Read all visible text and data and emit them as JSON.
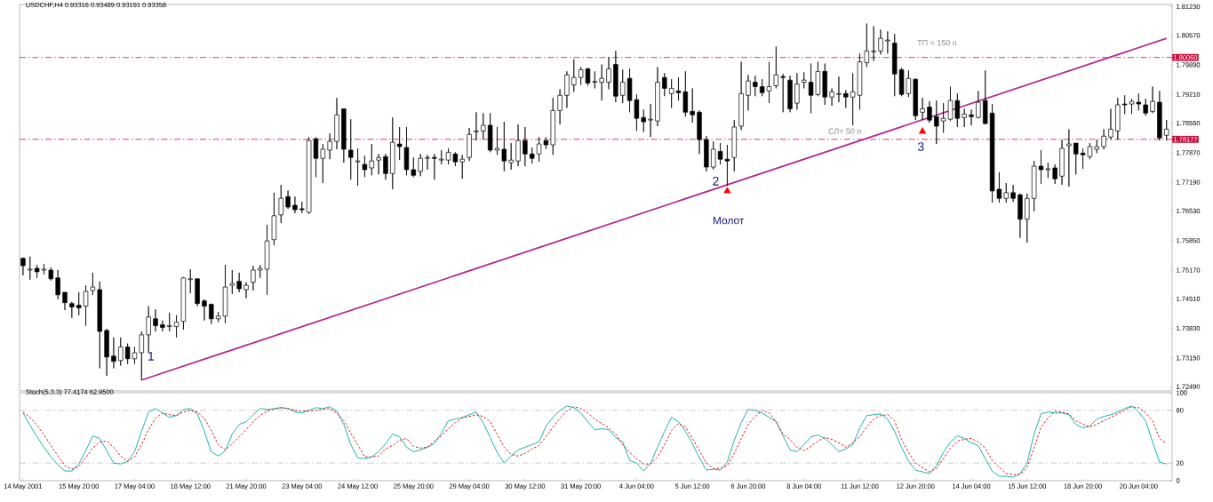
{
  "chart_data": [
    {
      "type": "candlestick",
      "title": "USDCHF,H4  0.93316 0.93489 0.93191 0.93358",
      "categories": [
        null,
        null,
        null,
        null,
        null,
        null,
        null,
        null,
        null,
        null,
        null,
        null,
        null,
        null,
        null,
        null,
        null,
        null,
        null,
        null,
        null,
        null,
        null,
        null,
        null,
        null,
        null,
        null,
        null,
        null,
        null,
        null,
        null,
        null,
        null,
        null,
        null,
        null,
        null,
        null,
        null,
        null,
        null,
        null,
        null,
        null,
        null,
        null,
        null,
        null,
        null,
        null,
        null,
        null,
        null,
        null,
        null,
        null,
        null,
        null,
        null,
        null,
        null,
        null,
        null,
        null,
        null,
        null,
        null,
        null,
        null,
        null,
        null,
        null,
        null,
        null,
        null,
        null,
        null,
        null,
        null,
        null,
        null,
        null,
        null,
        null,
        null,
        null,
        null,
        null,
        null,
        null,
        null,
        null,
        null,
        null,
        null,
        null,
        null,
        null,
        null,
        null,
        null,
        null,
        null,
        null,
        null,
        null,
        null,
        null,
        null,
        null,
        null,
        null,
        null,
        null,
        null,
        null,
        null,
        null,
        null,
        null,
        null,
        null,
        null,
        null,
        null,
        null,
        null,
        null,
        null,
        null,
        null,
        null,
        null,
        null,
        null,
        null,
        null,
        null,
        null,
        null,
        null,
        null,
        null,
        null,
        null,
        null,
        null,
        null,
        null,
        null,
        null,
        null,
        null,
        null,
        null,
        null,
        null,
        null,
        null,
        null,
        null,
        null,
        null
      ],
      "ohlc": [
        [
          1.7544,
          1.7546,
          1.7505,
          1.7527
        ],
        [
          1.7517,
          1.7548,
          1.7495,
          1.7519
        ],
        [
          1.7521,
          1.7529,
          1.7499,
          1.7513
        ],
        [
          1.7517,
          1.7531,
          1.7507,
          1.7519
        ],
        [
          1.7517,
          1.7523,
          1.7493,
          1.7497
        ],
        [
          1.7499,
          1.7517,
          1.745,
          1.746
        ],
        [
          1.7466,
          1.7466,
          1.7425,
          1.7442
        ],
        [
          1.744,
          1.7444,
          1.7407,
          1.7432
        ],
        [
          1.7436,
          1.7466,
          1.7413,
          1.743
        ],
        [
          1.7434,
          1.7482,
          1.7389,
          1.7468
        ],
        [
          1.747,
          1.7511,
          1.746,
          1.7478
        ],
        [
          1.7472,
          1.7491,
          1.7291,
          1.7376
        ],
        [
          1.7378,
          1.7382,
          1.7274,
          1.7317
        ],
        [
          1.7319,
          1.7362,
          1.7291,
          1.7307
        ],
        [
          1.7309,
          1.7362,
          1.7297,
          1.734
        ],
        [
          1.734,
          1.7348,
          1.7301,
          1.7313
        ],
        [
          1.7313,
          1.734,
          1.7301,
          1.7327
        ],
        [
          1.7327,
          1.7376,
          1.7264,
          1.7368
        ],
        [
          1.7368,
          1.7434,
          1.7327,
          1.7409
        ],
        [
          1.7405,
          1.7427,
          1.7376,
          1.7389
        ],
        [
          1.7391,
          1.7401,
          1.7376,
          1.7385
        ],
        [
          1.7387,
          1.7419,
          1.7376,
          1.7389
        ],
        [
          1.7387,
          1.7413,
          1.7362,
          1.7397
        ],
        [
          1.7399,
          1.7501,
          1.738,
          1.7499
        ],
        [
          1.7495,
          1.7519,
          1.7464,
          1.7497
        ],
        [
          1.7497,
          1.7497,
          1.7434,
          1.744
        ],
        [
          1.7446,
          1.745,
          1.7401,
          1.7434
        ],
        [
          1.7438,
          1.744,
          1.7393,
          1.7405
        ],
        [
          1.7405,
          1.7421,
          1.7397,
          1.7411
        ],
        [
          1.7411,
          1.7529,
          1.7395,
          1.7478
        ],
        [
          1.7482,
          1.7517,
          1.7462,
          1.7486
        ],
        [
          1.7491,
          1.7511,
          1.7466,
          1.7474
        ],
        [
          1.7472,
          1.7489,
          1.7452,
          1.7482
        ],
        [
          1.7489,
          1.7527,
          1.747,
          1.7517
        ],
        [
          1.7517,
          1.7529,
          1.7499,
          1.7521
        ],
        [
          1.7519,
          1.7621,
          1.746,
          1.7584
        ],
        [
          1.7587,
          1.7695,
          1.7574,
          1.7642
        ],
        [
          1.7644,
          1.7713,
          1.7625,
          1.7682
        ],
        [
          1.7686,
          1.77,
          1.7658,
          1.7662
        ],
        [
          1.7666,
          1.7686,
          1.7648,
          1.7656
        ],
        [
          1.7658,
          1.7674,
          1.7648,
          1.7656
        ],
        [
          1.765,
          1.7823,
          1.7646,
          1.7815
        ],
        [
          1.7819,
          1.7823,
          1.7731,
          1.7774
        ],
        [
          1.7774,
          1.7807,
          1.7717,
          1.7795
        ],
        [
          1.7793,
          1.7831,
          1.7772,
          1.7813
        ],
        [
          1.7813,
          1.7913,
          1.7795,
          1.7874
        ],
        [
          1.7888,
          1.7888,
          1.7764,
          1.7795
        ],
        [
          1.7793,
          1.7864,
          1.7725,
          1.7776
        ],
        [
          1.7766,
          1.7797,
          1.7711,
          1.7768
        ],
        [
          1.776,
          1.778,
          1.7731,
          1.7748
        ],
        [
          1.7752,
          1.7807,
          1.7735,
          1.7768
        ],
        [
          1.777,
          1.7784,
          1.7737,
          1.7776
        ],
        [
          1.7778,
          1.7784,
          1.7725,
          1.7739
        ],
        [
          1.7739,
          1.7868,
          1.7703,
          1.7811
        ],
        [
          1.7807,
          1.7846,
          1.777,
          1.7801
        ],
        [
          1.7799,
          1.7846,
          1.7735,
          1.7748
        ],
        [
          1.7748,
          1.7776,
          1.7731,
          1.7735
        ],
        [
          1.7744,
          1.7784,
          1.7733,
          1.7774
        ],
        [
          1.7774,
          1.7782,
          1.7748,
          1.7776
        ],
        [
          1.7776,
          1.7784,
          1.7725,
          1.7774
        ],
        [
          1.777,
          1.7793,
          1.776,
          1.7772
        ],
        [
          1.777,
          1.7797,
          1.776,
          1.7788
        ],
        [
          1.7784,
          1.7788,
          1.7756,
          1.7766
        ],
        [
          1.7766,
          1.7782,
          1.7727,
          1.7772
        ],
        [
          1.7776,
          1.7844,
          1.7768,
          1.7829
        ],
        [
          1.7835,
          1.788,
          1.7815,
          1.7837
        ],
        [
          1.7837,
          1.7878,
          1.7817,
          1.785
        ],
        [
          1.785,
          1.7878,
          1.7788,
          1.7793
        ],
        [
          1.7793,
          1.7846,
          1.7782,
          1.7797
        ],
        [
          1.7795,
          1.7858,
          1.7744,
          1.7768
        ],
        [
          1.7764,
          1.7809,
          1.7748,
          1.777
        ],
        [
          1.7768,
          1.7852,
          1.7756,
          1.7815
        ],
        [
          1.7815,
          1.7846,
          1.7756,
          1.7784
        ],
        [
          1.7784,
          1.7799,
          1.7762,
          1.7774
        ],
        [
          1.7784,
          1.7823,
          1.7766,
          1.7807
        ],
        [
          1.7815,
          1.7823,
          1.7795,
          1.7805
        ],
        [
          1.7805,
          1.7913,
          1.7782,
          1.7884
        ],
        [
          1.7884,
          1.7933,
          1.7852,
          1.7919
        ],
        [
          1.7919,
          1.7974,
          1.789,
          1.7966
        ],
        [
          1.7943,
          1.8002,
          1.7927,
          1.796
        ],
        [
          1.796,
          1.7984,
          1.7943,
          1.7978
        ],
        [
          1.798,
          1.7982,
          1.7941,
          1.7947
        ],
        [
          1.7949,
          1.7974,
          1.7935,
          1.7951
        ],
        [
          1.7949,
          1.799,
          1.7907,
          1.7958
        ],
        [
          1.7949,
          1.8007,
          1.7933,
          1.798
        ],
        [
          1.799,
          1.8021,
          1.7903,
          1.7917
        ],
        [
          1.7919,
          1.7978,
          1.7901,
          1.7949
        ],
        [
          1.7958,
          1.798,
          1.788,
          1.7907
        ],
        [
          1.7909,
          1.7921,
          1.7837,
          1.7866
        ],
        [
          1.7868,
          1.7886,
          1.7835,
          1.7858
        ],
        [
          1.7862,
          1.7899,
          1.7823,
          1.7864
        ],
        [
          1.786,
          1.7984,
          1.7848,
          1.7949
        ],
        [
          1.796,
          1.797,
          1.7917,
          1.7935
        ],
        [
          1.7923,
          1.7956,
          1.789,
          1.7935
        ],
        [
          1.7929,
          1.796,
          1.7907,
          1.7925
        ],
        [
          1.7927,
          1.7974,
          1.787,
          1.788
        ],
        [
          1.7882,
          1.7935,
          1.7856,
          1.7874
        ],
        [
          1.788,
          1.7884,
          1.7784,
          1.7817
        ],
        [
          1.7817,
          1.7825,
          1.7744,
          1.7754
        ],
        [
          1.7754,
          1.7813,
          1.7748,
          1.7795
        ],
        [
          1.779,
          1.7809,
          1.776,
          1.7772
        ],
        [
          1.7772,
          1.7805,
          1.7711,
          1.7768
        ],
        [
          1.7776,
          1.7862,
          1.7744,
          1.7846
        ],
        [
          1.7848,
          1.7996,
          1.7839,
          1.7923
        ],
        [
          1.7919,
          1.7966,
          1.7884,
          1.7952
        ],
        [
          1.7949,
          1.7964,
          1.7917,
          1.7939
        ],
        [
          1.7939,
          1.7956,
          1.7917,
          1.7925
        ],
        [
          1.7929,
          1.7996,
          1.7901,
          1.7939
        ],
        [
          1.7941,
          1.8031,
          1.7935,
          1.7966
        ],
        [
          1.7962,
          1.7968,
          1.788,
          1.796
        ],
        [
          1.7954,
          1.7964,
          1.788,
          1.7888
        ],
        [
          1.7901,
          1.797,
          1.7886,
          1.7945
        ],
        [
          1.7949,
          1.7972,
          1.7935,
          1.7954
        ],
        [
          1.7949,
          1.7992,
          1.7878,
          1.7919
        ],
        [
          1.7921,
          1.7996,
          1.7917,
          1.7974
        ],
        [
          1.7974,
          1.7992,
          1.7897,
          1.7915
        ],
        [
          1.7915,
          1.7935,
          1.7895,
          1.7927
        ],
        [
          1.7921,
          1.7962,
          1.7903,
          1.7923
        ],
        [
          1.7923,
          1.7931,
          1.789,
          1.7915
        ],
        [
          1.7915,
          1.797,
          1.785,
          1.7927
        ],
        [
          1.7919,
          1.8015,
          1.7886,
          1.7996
        ],
        [
          1.7994,
          1.8084,
          1.7984,
          1.8021
        ],
        [
          1.8019,
          1.8078,
          1.7998,
          1.8021
        ],
        [
          1.8021,
          1.807,
          1.8013,
          1.805
        ],
        [
          1.8044,
          1.8066,
          1.8015,
          1.8046
        ],
        [
          1.8039,
          1.806,
          1.7917,
          1.7968
        ],
        [
          1.7978,
          1.7982,
          1.7917,
          1.7921
        ],
        [
          1.7923,
          1.7976,
          1.7915,
          1.7958
        ],
        [
          1.7956,
          1.7958,
          1.7862,
          1.7872
        ],
        [
          1.788,
          1.7913,
          1.7862,
          1.7888
        ],
        [
          1.7892,
          1.7905,
          1.7856,
          1.7862
        ],
        [
          1.787,
          1.7907,
          1.7807,
          1.7848
        ],
        [
          1.786,
          1.7901,
          1.7833,
          1.7866
        ],
        [
          1.7864,
          1.7939,
          1.786,
          1.7907
        ],
        [
          1.7907,
          1.7923,
          1.7846,
          1.7866
        ],
        [
          1.7868,
          1.7888,
          1.7846,
          1.7876
        ],
        [
          1.7874,
          1.7886,
          1.785,
          1.787
        ],
        [
          1.7868,
          1.7929,
          1.7866,
          1.7903
        ],
        [
          1.7907,
          1.7976,
          1.7852,
          1.7854
        ],
        [
          1.7878,
          1.7899,
          1.7672,
          1.7699
        ],
        [
          1.7703,
          1.7742,
          1.7672,
          1.7682
        ],
        [
          1.7682,
          1.7717,
          1.7672,
          1.7695
        ],
        [
          1.7695,
          1.7713,
          1.7674,
          1.7682
        ],
        [
          1.769,
          1.7693,
          1.7591,
          1.7634
        ],
        [
          1.7634,
          1.7693,
          1.758,
          1.7682
        ],
        [
          1.7682,
          1.7768,
          1.7652,
          1.7756
        ],
        [
          1.7756,
          1.7793,
          1.7715,
          1.7748
        ],
        [
          1.7748,
          1.7764,
          1.7729,
          1.775
        ],
        [
          1.7752,
          1.776,
          1.7715,
          1.7727
        ],
        [
          1.7733,
          1.7817,
          1.7713,
          1.7797
        ],
        [
          1.7803,
          1.7841,
          1.7709,
          1.7807
        ],
        [
          1.7809,
          1.7809,
          1.7737,
          1.7784
        ],
        [
          1.7786,
          1.7797,
          1.775,
          1.7782
        ],
        [
          1.7778,
          1.7809,
          1.7772,
          1.7801
        ],
        [
          1.7795,
          1.7817,
          1.7786,
          1.7801
        ],
        [
          1.7801,
          1.7841,
          1.7795,
          1.7825
        ],
        [
          1.7823,
          1.7888,
          1.7817,
          1.7841
        ],
        [
          1.7837,
          1.7913,
          1.7817,
          1.7897
        ],
        [
          1.7899,
          1.7919,
          1.7876,
          1.7897
        ],
        [
          1.7899,
          1.7911,
          1.7876,
          1.7905
        ],
        [
          1.7903,
          1.7923,
          1.7884,
          1.7899
        ],
        [
          1.7897,
          1.7911,
          1.7872,
          1.7878
        ],
        [
          1.7882,
          1.7939,
          1.7878,
          1.7905
        ],
        [
          1.7903,
          1.7929,
          1.7815,
          1.7821
        ],
        [
          1.7827,
          1.7862,
          1.7815,
          1.7841
        ]
      ],
      "ylim": [
        1.7239,
        1.8128
      ],
      "yticks": [
        {
          "value": 1.8123,
          "label": "1.81230"
        },
        {
          "value": 1.8057,
          "label": "1.80570"
        },
        {
          "value": 1.7989,
          "label": "1.79890"
        },
        {
          "value": 1.7921,
          "label": "1.79210"
        },
        {
          "value": 1.7855,
          "label": "1.78550"
        },
        {
          "value": 1.7787,
          "label": "1.77870"
        },
        {
          "value": 1.7719,
          "label": "1.77190"
        },
        {
          "value": 1.7653,
          "label": "1.76530"
        },
        {
          "value": 1.7585,
          "label": "1.75850"
        },
        {
          "value": 1.7517,
          "label": "1.75170"
        },
        {
          "value": 1.7451,
          "label": "1.74510"
        },
        {
          "value": 1.7383,
          "label": "1.73830"
        },
        {
          "value": 1.7315,
          "label": "1.73150"
        },
        {
          "value": 1.7249,
          "label": "1.72490"
        }
      ],
      "series": [
        {
          "type": "line",
          "color": "#b03090",
          "values": [
            null,
            null,
            null,
            null,
            null,
            null,
            null,
            null,
            null,
            null,
            null,
            null,
            null,
            null,
            null,
            null,
            null,
            1.7264,
            null,
            null,
            null,
            null,
            null,
            null,
            null,
            null,
            null,
            null,
            null,
            null,
            null,
            null,
            null,
            null,
            null,
            null,
            null,
            null,
            null,
            null,
            null,
            null,
            null,
            null,
            null,
            null,
            null,
            null,
            null,
            null,
            null,
            null,
            null,
            null,
            null,
            null,
            null,
            null,
            null,
            null,
            null,
            null,
            null,
            null,
            null,
            null,
            null,
            null,
            null,
            null,
            null,
            null,
            null,
            null,
            null,
            null,
            null,
            null,
            null,
            null,
            null,
            null,
            null,
            null,
            null,
            null,
            null,
            null,
            null,
            null,
            null,
            null,
            null,
            null,
            null,
            null,
            null,
            null,
            null,
            null,
            null,
            null,
            null,
            null,
            null,
            null,
            null,
            null,
            null,
            null,
            null,
            null,
            null,
            null,
            null,
            null,
            null,
            null,
            null,
            null,
            null,
            null,
            null,
            null,
            null,
            null,
            null,
            null,
            null,
            null,
            null,
            null,
            null,
            null,
            null,
            null,
            null,
            null,
            null,
            null,
            null,
            null,
            null,
            null,
            null,
            null,
            null,
            null,
            null,
            null,
            null,
            null,
            null,
            null,
            null,
            null,
            null,
            null,
            null,
            null,
            null,
            null,
            null,
            null,
            1.805
          ]
        },
        {
          "type": "scatter",
          "color": "#ff0000",
          "marker": "triangle",
          "values": [
            null,
            null,
            null,
            null,
            null,
            null,
            null,
            null,
            null,
            null,
            null,
            null,
            null,
            null,
            null,
            null,
            null,
            null,
            null,
            null,
            null,
            null,
            null,
            null,
            null,
            null,
            null,
            null,
            null,
            null,
            null,
            null,
            null,
            null,
            null,
            null,
            null,
            null,
            null,
            null,
            null,
            null,
            null,
            null,
            null,
            null,
            null,
            null,
            null,
            null,
            null,
            null,
            null,
            null,
            null,
            null,
            null,
            null,
            null,
            null,
            null,
            null,
            null,
            null,
            null,
            null,
            null,
            null,
            null,
            null,
            null,
            null,
            null,
            null,
            null,
            null,
            null,
            null,
            null,
            null,
            null,
            null,
            null,
            null,
            null,
            null,
            null,
            null,
            null,
            null,
            null,
            null,
            null,
            null,
            null,
            null,
            null,
            null,
            null,
            null,
            null,
            1.7699,
            null,
            null,
            null,
            null,
            null,
            null,
            null,
            null,
            null,
            null,
            null,
            null,
            null,
            null,
            null,
            null,
            null,
            null,
            null,
            null,
            null,
            null,
            null,
            null,
            null,
            null,
            null,
            1.7836,
            null,
            null,
            null,
            null,
            null,
            null,
            null,
            null,
            null,
            null,
            null,
            null,
            null,
            null,
            null,
            null,
            null,
            null,
            null,
            null,
            null,
            null,
            null,
            null,
            null,
            null,
            null,
            null,
            null,
            null,
            null,
            null,
            null,
            null,
            null
          ]
        }
      ],
      "ref_lines": [
        {
          "axis": "y",
          "value": 1.8006,
          "label": "1.80060",
          "color": "#c8103c",
          "line_style": "dashed"
        },
        {
          "axis": "y",
          "value": 1.78177,
          "label": "1.78177",
          "color": "#c8103c",
          "line_style": "dashed"
        }
      ],
      "annotations": [
        "1",
        "2",
        "3",
        "Молот",
        "ТП = 150 п",
        "СЛ= 50 п"
      ]
    },
    {
      "type": "line",
      "title": "Stoch(5,3,3) 77.4174 62.9500",
      "categories": [
        "14 May 2001",
        null,
        null,
        null,
        null,
        null,
        null,
        null,
        "15 May 20:00",
        null,
        null,
        null,
        null,
        null,
        null,
        null,
        "17 May 04:00",
        null,
        null,
        null,
        null,
        null,
        null,
        null,
        "18 May 12:00",
        null,
        null,
        null,
        null,
        null,
        null,
        null,
        "21 May 20:00",
        null,
        null,
        null,
        null,
        null,
        null,
        null,
        "23 May 04:00",
        null,
        null,
        null,
        null,
        null,
        null,
        null,
        "24 May 12:00",
        null,
        null,
        null,
        null,
        null,
        null,
        null,
        "25 May 20:00",
        null,
        null,
        null,
        null,
        null,
        null,
        null,
        "29 May 04:00",
        null,
        null,
        null,
        null,
        null,
        null,
        null,
        "30 May 12:00",
        null,
        null,
        null,
        null,
        null,
        null,
        null,
        "31 May 20:00",
        null,
        null,
        null,
        null,
        null,
        null,
        null,
        "4 Jun 04:00",
        null,
        null,
        null,
        null,
        null,
        null,
        null,
        "5 Jun 12:00",
        null,
        null,
        null,
        null,
        null,
        null,
        null,
        "6 Jun 20:00",
        null,
        null,
        null,
        null,
        null,
        null,
        null,
        "8 Jun 04:00",
        null,
        null,
        null,
        null,
        null,
        null,
        null,
        "11 Jun 12:00",
        null,
        null,
        null,
        null,
        null,
        null,
        null,
        "12 Jun 20:00",
        null,
        null,
        null,
        null,
        null,
        null,
        null,
        "14 Jun 04:00",
        null,
        null,
        null,
        null,
        null,
        null,
        null,
        "15 Jun 12:00",
        null,
        null,
        null,
        null,
        null,
        null,
        null,
        "18 Jun 20:00",
        null,
        null,
        null,
        null,
        null,
        null,
        null,
        "20 Jun 04:00",
        null,
        null,
        null,
        null
      ],
      "ylim": [
        0,
        100
      ],
      "yticks": [
        0,
        20,
        80,
        100
      ],
      "series": [
        {
          "color": "#20b2aa",
          "values": [
            77,
            63,
            50,
            38,
            27,
            18,
            11,
            11,
            19,
            34,
            51,
            48,
            34,
            20,
            19,
            22,
            33,
            56,
            78,
            82,
            77,
            72,
            74,
            81,
            82,
            76,
            56,
            33,
            28,
            34,
            53,
            64,
            67,
            75,
            82,
            81,
            82,
            83,
            82,
            78,
            77,
            80,
            83,
            82,
            84,
            79,
            64,
            41,
            26,
            25,
            27,
            33,
            42,
            53,
            50,
            38,
            33,
            35,
            38,
            42,
            54,
            68,
            70,
            72,
            75,
            78,
            66,
            49,
            32,
            20,
            28,
            35,
            38,
            41,
            44,
            62,
            72,
            80,
            85,
            83,
            77,
            67,
            58,
            59,
            58,
            49,
            44,
            23,
            20,
            11,
            20,
            38,
            56,
            72,
            67,
            56,
            42,
            26,
            12,
            13,
            12,
            21,
            46,
            66,
            81,
            80,
            77,
            72,
            67,
            51,
            35,
            33,
            41,
            50,
            52,
            48,
            41,
            33,
            36,
            41,
            60,
            74,
            75,
            76,
            70,
            56,
            38,
            22,
            12,
            10,
            8,
            17,
            32,
            44,
            51,
            48,
            43,
            40,
            25,
            11,
            5,
            5,
            4,
            8,
            20,
            53,
            76,
            78,
            77,
            77,
            75,
            64,
            60,
            62,
            70,
            73,
            75,
            78,
            82,
            85,
            78,
            68,
            44,
            21,
            19
          ]
        },
        {
          "color": "#e01818",
          "line_style": "dashed",
          "values": [
            78,
            72,
            63,
            52,
            40,
            28,
            17,
            13,
            16,
            26,
            37,
            44,
            45,
            38,
            28,
            22,
            27,
            41,
            58,
            71,
            77,
            75,
            74,
            78,
            80,
            78,
            71,
            57,
            41,
            35,
            42,
            50,
            58,
            67,
            74,
            79,
            81,
            83,
            82,
            80,
            79,
            79,
            80,
            81,
            82,
            77,
            68,
            54,
            41,
            27,
            27,
            28,
            36,
            40,
            46,
            48,
            39,
            37,
            38,
            45,
            51,
            59,
            66,
            71,
            73,
            75,
            73,
            67,
            53,
            38,
            30,
            28,
            31,
            36,
            40,
            50,
            61,
            71,
            79,
            84,
            82,
            77,
            70,
            65,
            60,
            53,
            41,
            32,
            25,
            19,
            19,
            27,
            41,
            57,
            65,
            61,
            48,
            34,
            20,
            14,
            14,
            17,
            31,
            48,
            64,
            73,
            80,
            77,
            67,
            53,
            47,
            38,
            34,
            39,
            45,
            49,
            47,
            43,
            38,
            43,
            50,
            61,
            70,
            74,
            75,
            68,
            47,
            32,
            20,
            15,
            10,
            14,
            25,
            37,
            45,
            47,
            48,
            44,
            37,
            23,
            15,
            8,
            7,
            7,
            15,
            37,
            61,
            71,
            79,
            78,
            76,
            68,
            64,
            61,
            64,
            68,
            72,
            76,
            80,
            84,
            83,
            77,
            68,
            48,
            42
          ]
        }
      ],
      "ref_lines": [
        {
          "axis": "y",
          "value": 20,
          "color": "#c0c0c0",
          "line_style": "dashed"
        },
        {
          "axis": "y",
          "value": 80,
          "color": "#c0c0c0",
          "line_style": "dashed"
        }
      ]
    }
  ]
}
